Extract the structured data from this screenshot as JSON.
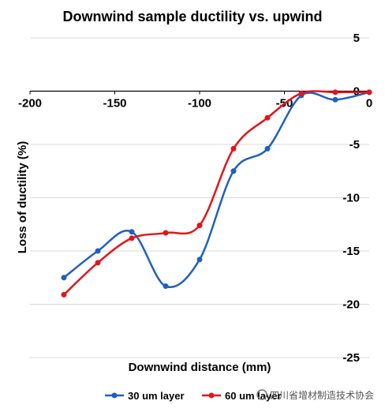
{
  "chart_data": {
    "type": "line",
    "title": "Downwind sample ductility vs. upwind",
    "xlabel": "Downwind distance (mm)",
    "ylabel": "Loss of ductility (%)",
    "xlim": [
      -200,
      0
    ],
    "ylim": [
      -25,
      5
    ],
    "x_ticks": [
      "-200",
      "-150",
      "-100",
      "-50",
      "0"
    ],
    "y_ticks": [
      "5",
      "0",
      "-5",
      "-10",
      "-15",
      "-20",
      "-25"
    ],
    "grid": true,
    "legend_position": "bottom",
    "series": [
      {
        "name": "30 um layer",
        "color": "#1f5fbf",
        "x": [
          -180,
          -160,
          -140,
          -120,
          -100,
          -80,
          -60,
          -40,
          -20,
          0
        ],
        "y": [
          -17.5,
          -15.0,
          -13.2,
          -18.3,
          -15.8,
          -7.5,
          -5.4,
          -0.4,
          -0.8,
          -0.1
        ]
      },
      {
        "name": "60 um layer",
        "color": "#e0161b",
        "x": [
          -180,
          -160,
          -140,
          -120,
          -100,
          -80,
          -60,
          -40,
          -20,
          0
        ],
        "y": [
          -19.1,
          -16.1,
          -13.8,
          -13.3,
          -12.6,
          -5.4,
          -2.5,
          -0.2,
          -0.1,
          -0.1
        ]
      }
    ]
  },
  "watermark": "四川省增材制造技术协会"
}
